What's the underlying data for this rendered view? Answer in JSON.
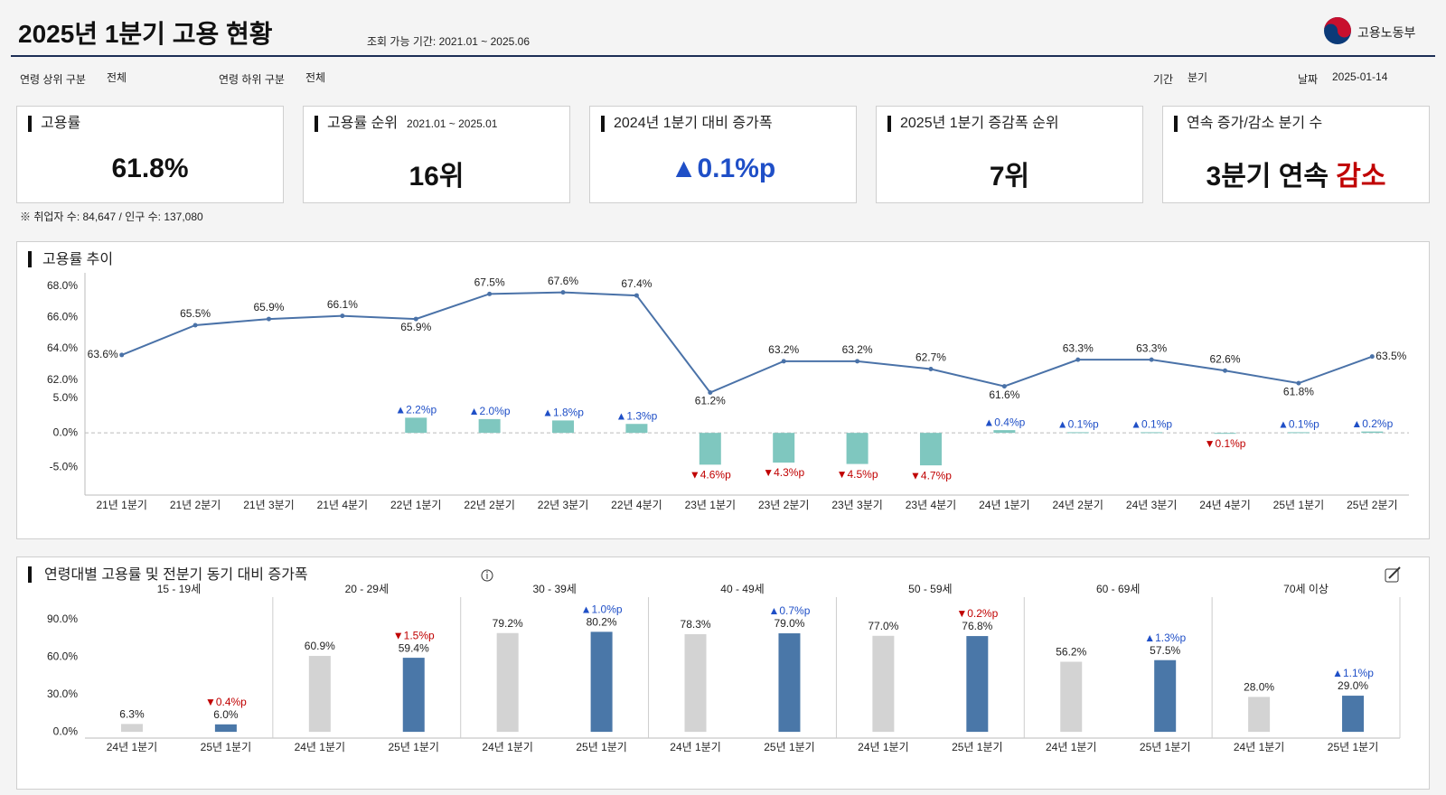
{
  "header": {
    "title": "2025년 1분기 고용 현황",
    "period": "조회 가능 기간: 2021.01 ~ 2025.06",
    "logo": "고용노동부"
  },
  "filters": [
    {
      "label": "연령 상위 구분",
      "value": "전체"
    },
    {
      "label": "연령 하위 구분",
      "value": "전체"
    },
    {
      "label": "기간",
      "value": "분기"
    },
    {
      "label": "날짜",
      "value": "2025-01-14"
    }
  ],
  "kpis": [
    {
      "title": "고용률",
      "value": "61.8%"
    },
    {
      "title": "고용률 순위",
      "sub": "2021.01 ~ 2025.01",
      "value": "16위"
    },
    {
      "title": "2024년 1분기 대비 증가폭",
      "value": "▲0.1%p",
      "color": "#1f4fc7"
    },
    {
      "title": "2025년 1분기 증감폭 순위",
      "value": "7위"
    },
    {
      "title": "연속 증가/감소 분기 수",
      "value": "3분기 연속",
      "emphasis": "감소",
      "emphasis_color": "#c00000"
    }
  ],
  "note": "※ 취업자 수: 84,647 / 인구 수: 137,080",
  "chart_data": [
    {
      "type": "combo",
      "title": "고용률 추이",
      "categories": [
        "21년 1분기",
        "21년 2분기",
        "21년 3분기",
        "21년 4분기",
        "22년 1분기",
        "22년 2분기",
        "22년 3분기",
        "22년 4분기",
        "23년 1분기",
        "23년 2분기",
        "23년 3분기",
        "23년 4분기",
        "24년 1분기",
        "24년 2분기",
        "24년 3분기",
        "24년 4분기",
        "25년 1분기",
        "25년 2분기"
      ],
      "series": [
        {
          "type": "line",
          "axis": "y",
          "color": "#4a72a8",
          "values": [
            63.6,
            65.5,
            65.9,
            66.1,
            65.9,
            67.5,
            67.6,
            67.4,
            61.2,
            63.2,
            63.2,
            62.7,
            61.6,
            63.3,
            63.3,
            62.6,
            61.8,
            63.5
          ],
          "value_labels": [
            "63.6%",
            "65.5%",
            "65.9%",
            "66.1%",
            "65.9%",
            "67.5%",
            "67.6%",
            "67.4%",
            "61.2%",
            "63.2%",
            "63.2%",
            "62.7%",
            "61.6%",
            "63.3%",
            "63.3%",
            "62.6%",
            "61.8%",
            "63.5%"
          ]
        },
        {
          "type": "bar",
          "axis": "y2",
          "color": "#7fc7bf",
          "up_color": "#1f4fc7",
          "down_color": "#c00000",
          "values": [
            null,
            null,
            null,
            null,
            2.2,
            2.0,
            1.8,
            1.3,
            -4.6,
            -4.3,
            -4.5,
            -4.7,
            0.4,
            0.1,
            0.1,
            -0.1,
            0.1,
            0.2
          ],
          "value_labels": [
            null,
            null,
            null,
            null,
            "▲2.2%p",
            "▲2.0%p",
            "▲1.8%p",
            "▲1.3%p",
            "▼4.6%p",
            "▼4.3%p",
            "▼4.5%p",
            "▼4.7%p",
            "▲0.4%p",
            "▲0.1%p",
            "▲0.1%p",
            "▼0.1%p",
            "▲0.1%p",
            "▲0.2%p"
          ]
        }
      ],
      "ylim": [
        61,
        68.5
      ],
      "yticks": [
        {
          "value": 62,
          "label": "62.0%"
        },
        {
          "value": 64,
          "label": "64.0%"
        },
        {
          "value": 66,
          "label": "66.0%"
        },
        {
          "value": 68,
          "label": "68.0%"
        }
      ],
      "y2lim": [
        -9,
        8
      ],
      "y2ticks": [
        {
          "value": -5,
          "label": "-5.0%"
        },
        {
          "value": 0,
          "label": "0.0%"
        },
        {
          "value": 5,
          "label": "5.0%"
        }
      ]
    },
    {
      "type": "grouped-bar",
      "title": "연령대별 고용률 및 전분기 동기 대비 증가폭",
      "categories": [
        "15 - 19세",
        "20 - 29세",
        "30 - 39세",
        "40 - 49세",
        "50 - 59세",
        "60 - 69세",
        "70세 이상"
      ],
      "series": [
        {
          "name": "24년 1분기",
          "color": "#d3d3d3",
          "values": [
            6.3,
            60.9,
            79.2,
            78.3,
            77.0,
            56.2,
            28.0
          ],
          "value_labels": [
            "6.3%",
            "60.9%",
            "79.2%",
            "78.3%",
            "77.0%",
            "56.2%",
            "28.0%"
          ]
        },
        {
          "name": "25년 1분기",
          "color": "#4a77a8",
          "values": [
            6.0,
            59.4,
            80.2,
            79.0,
            76.8,
            57.5,
            29.0
          ],
          "value_labels": [
            "6.0%",
            "59.4%",
            "80.2%",
            "79.0%",
            "76.8%",
            "57.5%",
            "29.0%"
          ]
        }
      ],
      "changes": {
        "values": [
          -0.4,
          -1.5,
          1.0,
          0.7,
          -0.2,
          1.3,
          1.1
        ],
        "value_labels": [
          "▼0.4%p",
          "▼1.5%p",
          "▲1.0%p",
          "▲0.7%p",
          "▼0.2%p",
          "▲1.3%p",
          "▲1.1%p"
        ],
        "up_color": "#1f4fc7",
        "down_color": "#c00000"
      },
      "ylim": [
        -5,
        108
      ],
      "yticks": [
        {
          "value": 0,
          "label": "0.0%"
        },
        {
          "value": 30,
          "label": "30.0%"
        },
        {
          "value": 60,
          "label": "60.0%"
        },
        {
          "value": 90,
          "label": "90.0%"
        }
      ]
    }
  ]
}
